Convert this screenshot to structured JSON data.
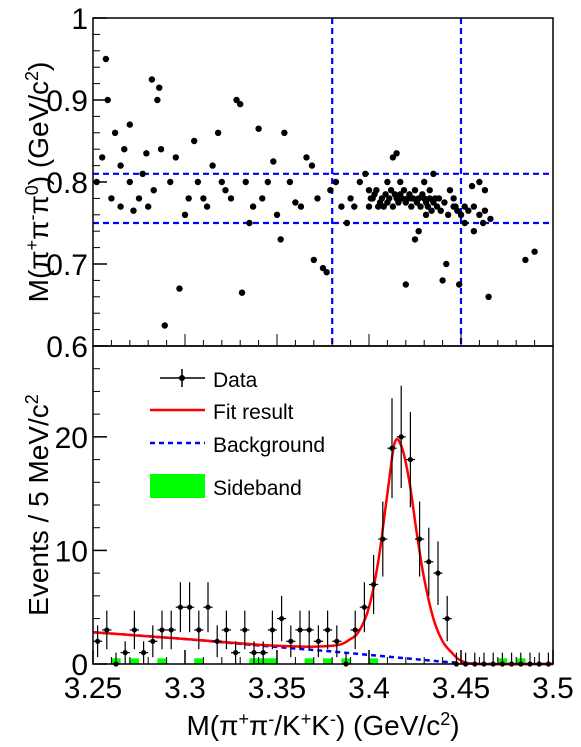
{
  "chart_data": [
    {
      "type": "scatter",
      "panel": "top",
      "title": "",
      "xlabel": "",
      "ylabel_parts": [
        "M(π",
        "+",
        "π",
        "-",
        "π",
        "0",
        ") (GeV/c",
        "2",
        ")"
      ],
      "xlim": [
        3.25,
        3.5
      ],
      "ylim": [
        0.6,
        1.0
      ],
      "yticks": [
        "0.6",
        "0.7",
        "0.8",
        "0.9",
        "1"
      ],
      "grid": false,
      "lines": {
        "color": "#0000ff",
        "vertical_x": [
          3.38,
          3.45
        ],
        "horizontal_y": [
          0.75,
          0.81
        ]
      },
      "points": [
        [
          3.252,
          0.8
        ],
        [
          3.255,
          0.83
        ],
        [
          3.257,
          0.95
        ],
        [
          3.258,
          0.9
        ],
        [
          3.26,
          0.78
        ],
        [
          3.262,
          0.86
        ],
        [
          3.265,
          0.82
        ],
        [
          3.265,
          0.77
        ],
        [
          3.267,
          0.84
        ],
        [
          3.27,
          0.87
        ],
        [
          3.27,
          0.8
        ],
        [
          3.272,
          0.765
        ],
        [
          3.275,
          0.78
        ],
        [
          3.277,
          0.81
        ],
        [
          3.279,
          0.835
        ],
        [
          3.28,
          0.77
        ],
        [
          3.282,
          0.925
        ],
        [
          3.283,
          0.79
        ],
        [
          3.285,
          0.9
        ],
        [
          3.286,
          0.915
        ],
        [
          3.287,
          0.84
        ],
        [
          3.289,
          0.625
        ],
        [
          3.292,
          0.8
        ],
        [
          3.295,
          0.83
        ],
        [
          3.297,
          0.67
        ],
        [
          3.3,
          0.76
        ],
        [
          3.302,
          0.78
        ],
        [
          3.305,
          0.85
        ],
        [
          3.307,
          0.8
        ],
        [
          3.31,
          0.78
        ],
        [
          3.312,
          0.77
        ],
        [
          3.315,
          0.82
        ],
        [
          3.318,
          0.86
        ],
        [
          3.32,
          0.8
        ],
        [
          3.322,
          0.79
        ],
        [
          3.325,
          0.78
        ],
        [
          3.328,
          0.9
        ],
        [
          3.33,
          0.895
        ],
        [
          3.331,
          0.665
        ],
        [
          3.333,
          0.8
        ],
        [
          3.335,
          0.75
        ],
        [
          3.337,
          0.77
        ],
        [
          3.34,
          0.865
        ],
        [
          3.342,
          0.78
        ],
        [
          3.345,
          0.8
        ],
        [
          3.348,
          0.825
        ],
        [
          3.35,
          0.76
        ],
        [
          3.352,
          0.73
        ],
        [
          3.354,
          0.86
        ],
        [
          3.357,
          0.8
        ],
        [
          3.36,
          0.775
        ],
        [
          3.363,
          0.77
        ],
        [
          3.366,
          0.83
        ],
        [
          3.369,
          0.82
        ],
        [
          3.37,
          0.705
        ],
        [
          3.372,
          0.78
        ],
        [
          3.375,
          0.695
        ],
        [
          3.377,
          0.69
        ],
        [
          3.379,
          0.79
        ],
        [
          3.382,
          0.8
        ],
        [
          3.385,
          0.77
        ],
        [
          3.388,
          0.75
        ],
        [
          3.39,
          0.78
        ],
        [
          3.392,
          0.77
        ],
        [
          3.395,
          0.8
        ],
        [
          3.398,
          0.81
        ],
        [
          3.4,
          0.79
        ],
        [
          3.402,
          0.78
        ],
        [
          3.405,
          0.77
        ],
        [
          3.41,
          0.8
        ],
        [
          3.413,
          0.83
        ],
        [
          3.415,
          0.835
        ],
        [
          3.417,
          0.8
        ],
        [
          3.42,
          0.675
        ],
        [
          3.423,
          0.78
        ],
        [
          3.425,
          0.73
        ],
        [
          3.427,
          0.74
        ],
        [
          3.43,
          0.8
        ],
        [
          3.431,
          0.76
        ],
        [
          3.433,
          0.79
        ],
        [
          3.435,
          0.81
        ],
        [
          3.438,
          0.78
        ],
        [
          3.44,
          0.68
        ],
        [
          3.442,
          0.7
        ],
        [
          3.444,
          0.79
        ],
        [
          3.446,
          0.78
        ],
        [
          3.447,
          0.77
        ],
        [
          3.449,
          0.675
        ],
        [
          3.45,
          0.76
        ],
        [
          3.452,
          0.75
        ],
        [
          3.456,
          0.795
        ],
        [
          3.457,
          0.74
        ],
        [
          3.46,
          0.8
        ],
        [
          3.462,
          0.75
        ],
        [
          3.463,
          0.79
        ],
        [
          3.465,
          0.66
        ],
        [
          3.4,
          0.77
        ],
        [
          3.401,
          0.78
        ],
        [
          3.403,
          0.785
        ],
        [
          3.404,
          0.79
        ],
        [
          3.406,
          0.775
        ],
        [
          3.407,
          0.78
        ],
        [
          3.408,
          0.77
        ],
        [
          3.409,
          0.785
        ],
        [
          3.41,
          0.775
        ],
        [
          3.411,
          0.78
        ],
        [
          3.412,
          0.79
        ],
        [
          3.413,
          0.77
        ],
        [
          3.414,
          0.785
        ],
        [
          3.415,
          0.78
        ],
        [
          3.416,
          0.775
        ],
        [
          3.417,
          0.785
        ],
        [
          3.418,
          0.78
        ],
        [
          3.419,
          0.79
        ],
        [
          3.42,
          0.775
        ],
        [
          3.421,
          0.78
        ],
        [
          3.422,
          0.785
        ],
        [
          3.423,
          0.77
        ],
        [
          3.424,
          0.78
        ],
        [
          3.425,
          0.79
        ],
        [
          3.426,
          0.775
        ],
        [
          3.427,
          0.78
        ],
        [
          3.428,
          0.77
        ],
        [
          3.429,
          0.785
        ],
        [
          3.43,
          0.78
        ],
        [
          3.431,
          0.775
        ],
        [
          3.432,
          0.77
        ],
        [
          3.433,
          0.78
        ],
        [
          3.434,
          0.765
        ],
        [
          3.435,
          0.775
        ],
        [
          3.436,
          0.78
        ],
        [
          3.437,
          0.77
        ],
        [
          3.439,
          0.765
        ],
        [
          3.441,
          0.775
        ],
        [
          3.443,
          0.76
        ],
        [
          3.446,
          0.77
        ],
        [
          3.448,
          0.765
        ],
        [
          3.45,
          0.76
        ],
        [
          3.452,
          0.77
        ],
        [
          3.454,
          0.765
        ],
        [
          3.457,
          0.77
        ],
        [
          3.46,
          0.76
        ],
        [
          3.463,
          0.765
        ],
        [
          3.466,
          0.755
        ],
        [
          3.485,
          0.705
        ],
        [
          3.49,
          0.715
        ]
      ]
    },
    {
      "type": "line",
      "panel": "bottom",
      "title": "",
      "xlabel_parts": [
        "M(π",
        "+",
        "π",
        "-",
        "/K",
        "+",
        "K",
        "-",
        ") (GeV/c",
        "2",
        ")"
      ],
      "ylabel_parts": [
        "Events / 5 MeV/c",
        "2"
      ],
      "xlim": [
        3.25,
        3.5
      ],
      "ylim": [
        0,
        28
      ],
      "xticks": [
        "3.25",
        "3.3",
        "3.35",
        "3.4",
        "3.45",
        "3.5"
      ],
      "yticks": [
        "0",
        "10",
        "20"
      ],
      "legend_position": "top-left",
      "grid": false,
      "legend": [
        {
          "label": "Data",
          "kind": "errorbar",
          "color": "#000000"
        },
        {
          "label": "Fit result",
          "kind": "solid-line",
          "color": "#ff0000"
        },
        {
          "label": "Background",
          "kind": "dashed-line",
          "color": "#0000ff"
        },
        {
          "label": "Sideband",
          "kind": "filled-box",
          "color": "#00ff00"
        }
      ],
      "data_points": [
        {
          "x": 3.2525,
          "y": 2,
          "err": 1.4
        },
        {
          "x": 3.2575,
          "y": 3,
          "err": 1.7
        },
        {
          "x": 3.2625,
          "y": 0,
          "err": 1.0
        },
        {
          "x": 3.2675,
          "y": 1,
          "err": 1.0
        },
        {
          "x": 3.2725,
          "y": 3,
          "err": 1.7
        },
        {
          "x": 3.2775,
          "y": 1,
          "err": 1.0
        },
        {
          "x": 3.2825,
          "y": 2,
          "err": 1.4
        },
        {
          "x": 3.2875,
          "y": 3,
          "err": 1.7
        },
        {
          "x": 3.2925,
          "y": 3,
          "err": 1.7
        },
        {
          "x": 3.2975,
          "y": 5,
          "err": 2.2
        },
        {
          "x": 3.3025,
          "y": 5,
          "err": 2.2
        },
        {
          "x": 3.3075,
          "y": 3,
          "err": 1.7
        },
        {
          "x": 3.3125,
          "y": 5,
          "err": 2.2
        },
        {
          "x": 3.3175,
          "y": 2,
          "err": 1.4
        },
        {
          "x": 3.3225,
          "y": 3,
          "err": 1.7
        },
        {
          "x": 3.3275,
          "y": 1,
          "err": 1.0
        },
        {
          "x": 3.3325,
          "y": 3,
          "err": 1.7
        },
        {
          "x": 3.3375,
          "y": 1,
          "err": 1.0
        },
        {
          "x": 3.3425,
          "y": 1,
          "err": 1.0
        },
        {
          "x": 3.3475,
          "y": 3,
          "err": 1.7
        },
        {
          "x": 3.3525,
          "y": 4,
          "err": 2.0
        },
        {
          "x": 3.3575,
          "y": 2,
          "err": 1.4
        },
        {
          "x": 3.3625,
          "y": 3,
          "err": 1.7
        },
        {
          "x": 3.3675,
          "y": 3,
          "err": 1.7
        },
        {
          "x": 3.3725,
          "y": 2,
          "err": 1.4
        },
        {
          "x": 3.3775,
          "y": 3,
          "err": 1.7
        },
        {
          "x": 3.3825,
          "y": 2,
          "err": 1.4
        },
        {
          "x": 3.3875,
          "y": 0,
          "err": 1.0
        },
        {
          "x": 3.3925,
          "y": 3,
          "err": 1.7
        },
        {
          "x": 3.3975,
          "y": 5,
          "err": 2.2
        },
        {
          "x": 3.4025,
          "y": 7,
          "err": 2.6
        },
        {
          "x": 3.4075,
          "y": 11,
          "err": 3.3
        },
        {
          "x": 3.4125,
          "y": 19,
          "err": 4.4
        },
        {
          "x": 3.4175,
          "y": 20,
          "err": 4.5
        },
        {
          "x": 3.4225,
          "y": 18,
          "err": 4.2
        },
        {
          "x": 3.4275,
          "y": 11,
          "err": 3.3
        },
        {
          "x": 3.4325,
          "y": 9,
          "err": 3.0
        },
        {
          "x": 3.4375,
          "y": 8,
          "err": 2.8
        },
        {
          "x": 3.4425,
          "y": 4,
          "err": 2.0
        },
        {
          "x": 3.4475,
          "y": 0,
          "err": 1.0
        },
        {
          "x": 3.4525,
          "y": 0,
          "err": 1.0
        },
        {
          "x": 3.4575,
          "y": 0,
          "err": 1.0
        },
        {
          "x": 3.4625,
          "y": 0,
          "err": 1.0
        },
        {
          "x": 3.4675,
          "y": 0,
          "err": 1.0
        },
        {
          "x": 3.4725,
          "y": 0,
          "err": 1.0
        },
        {
          "x": 3.4775,
          "y": 0,
          "err": 1.0
        },
        {
          "x": 3.4825,
          "y": 0,
          "err": 1.0
        },
        {
          "x": 3.4875,
          "y": 0,
          "err": 1.0
        },
        {
          "x": 3.4925,
          "y": 0,
          "err": 1.0
        },
        {
          "x": 3.4975,
          "y": 0,
          "err": 1.0
        }
      ],
      "background_curve": {
        "x": [
          3.25,
          3.3,
          3.35,
          3.38,
          3.4,
          3.42,
          3.44,
          3.46,
          3.5
        ],
        "y": [
          2.8,
          2.2,
          1.5,
          1.1,
          0.8,
          0.5,
          0.2,
          0.0,
          0.0
        ]
      },
      "fit_curve": {
        "x": [
          3.25,
          3.3,
          3.35,
          3.38,
          3.39,
          3.395,
          3.4,
          3.405,
          3.41,
          3.414,
          3.418,
          3.422,
          3.426,
          3.43,
          3.435,
          3.44,
          3.445,
          3.45,
          3.46,
          3.5
        ],
        "y": [
          2.8,
          2.2,
          1.6,
          1.6,
          2.2,
          3.0,
          5.0,
          9.0,
          15.0,
          19.5,
          19.0,
          16.0,
          11.5,
          7.5,
          4.0,
          2.0,
          1.0,
          0.3,
          0.0,
          0.0
        ]
      },
      "sideband_bins": [
        {
          "x": 3.2625,
          "y": 0.5
        },
        {
          "x": 3.2725,
          "y": 0.5
        },
        {
          "x": 3.2875,
          "y": 0.5
        },
        {
          "x": 3.3075,
          "y": 0.5
        },
        {
          "x": 3.3375,
          "y": 0.5
        },
        {
          "x": 3.3425,
          "y": 0.5
        },
        {
          "x": 3.3475,
          "y": 0.5
        },
        {
          "x": 3.3675,
          "y": 0.5
        },
        {
          "x": 3.3775,
          "y": 0.5
        },
        {
          "x": 3.3875,
          "y": 0.5
        },
        {
          "x": 3.4025,
          "y": 0.5
        },
        {
          "x": 3.4725,
          "y": 0.5
        },
        {
          "x": 3.4825,
          "y": 0.5
        }
      ]
    }
  ]
}
